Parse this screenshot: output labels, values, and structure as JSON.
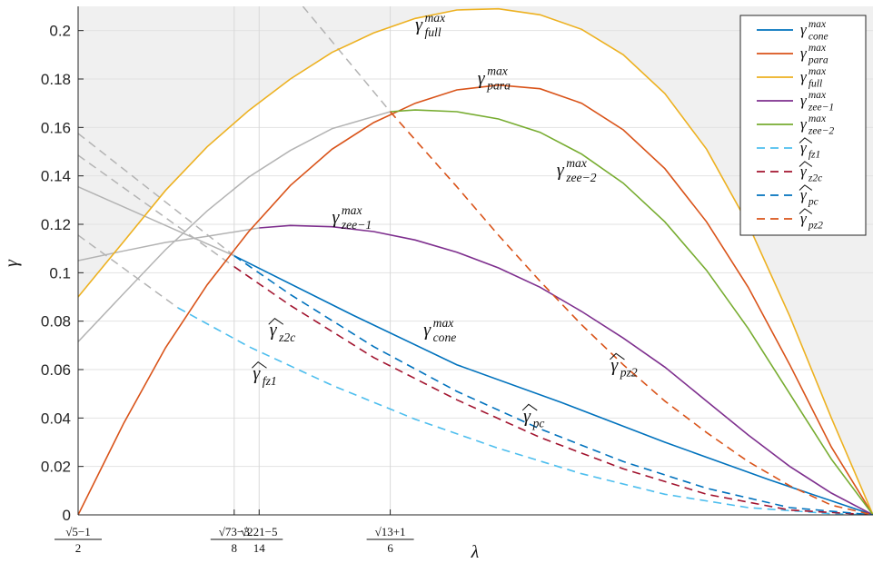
{
  "chart_data": {
    "type": "line",
    "xlabel": "λ",
    "ylabel": "γ",
    "xlim": [
      0.618,
      1.0
    ],
    "ylim": [
      0,
      0.21
    ],
    "grid": true,
    "legend_position": "top-right",
    "y_ticks": [
      0,
      0.02,
      0.04,
      0.06,
      0.08,
      0.1,
      0.12,
      0.14,
      0.16,
      0.18,
      0.2
    ],
    "y_tick_labels": [
      "0",
      "0.02",
      "0.04",
      "0.06",
      "0.08",
      "0.1",
      "0.12",
      "0.14",
      "0.16",
      "0.18",
      "0.2"
    ],
    "x_ticks": [
      {
        "x": 0.618,
        "num": "√5−1",
        "den": "2"
      },
      {
        "x": 0.693,
        "num": "√73−3",
        "den": "8"
      },
      {
        "x": 0.705,
        "num": "√221−5",
        "den": "14"
      },
      {
        "x": 0.768,
        "num": "√13+1",
        "den": "6"
      }
    ],
    "series": [
      {
        "name": "γ_cone^max",
        "color": "#0072BD",
        "dash": false,
        "points": [
          [
            0.693,
            0.107
          ],
          [
            0.75,
            0.0825
          ],
          [
            0.8,
            0.062
          ],
          [
            0.85,
            0.0465
          ],
          [
            0.9,
            0.03
          ],
          [
            0.95,
            0.0145
          ],
          [
            1.0,
            0.0
          ]
        ]
      },
      {
        "name": "γ_para^max",
        "color": "#D95319",
        "dash": false,
        "points": [
          [
            0.618,
            0.0
          ],
          [
            0.64,
            0.038
          ],
          [
            0.66,
            0.069
          ],
          [
            0.68,
            0.095
          ],
          [
            0.7,
            0.117
          ],
          [
            0.72,
            0.136
          ],
          [
            0.74,
            0.151
          ],
          [
            0.76,
            0.162
          ],
          [
            0.78,
            0.17
          ],
          [
            0.8,
            0.1755
          ],
          [
            0.82,
            0.1775
          ],
          [
            0.84,
            0.176
          ],
          [
            0.86,
            0.17
          ],
          [
            0.88,
            0.159
          ],
          [
            0.9,
            0.143
          ],
          [
            0.92,
            0.121
          ],
          [
            0.94,
            0.094
          ],
          [
            0.96,
            0.062
          ],
          [
            0.98,
            0.028
          ],
          [
            1.0,
            0.0
          ]
        ]
      },
      {
        "name": "γ_full^max",
        "color": "#EDB120",
        "dash": false,
        "points": [
          [
            0.618,
            0.09
          ],
          [
            0.64,
            0.113
          ],
          [
            0.66,
            0.134
          ],
          [
            0.68,
            0.152
          ],
          [
            0.7,
            0.167
          ],
          [
            0.72,
            0.18
          ],
          [
            0.74,
            0.191
          ],
          [
            0.76,
            0.199
          ],
          [
            0.78,
            0.205
          ],
          [
            0.8,
            0.2085
          ],
          [
            0.82,
            0.209
          ],
          [
            0.84,
            0.2065
          ],
          [
            0.86,
            0.2005
          ],
          [
            0.88,
            0.19
          ],
          [
            0.9,
            0.174
          ],
          [
            0.92,
            0.151
          ],
          [
            0.94,
            0.12
          ],
          [
            0.96,
            0.082
          ],
          [
            0.98,
            0.04
          ],
          [
            1.0,
            0.0
          ]
        ]
      },
      {
        "name": "γ_zee−1^max",
        "color": "#7E2F8E",
        "dash": false,
        "points": [
          [
            0.705,
            0.1185
          ],
          [
            0.72,
            0.1195
          ],
          [
            0.74,
            0.119
          ],
          [
            0.76,
            0.117
          ],
          [
            0.78,
            0.1135
          ],
          [
            0.8,
            0.1085
          ],
          [
            0.82,
            0.102
          ],
          [
            0.84,
            0.094
          ],
          [
            0.86,
            0.084
          ],
          [
            0.88,
            0.073
          ],
          [
            0.9,
            0.061
          ],
          [
            0.92,
            0.047
          ],
          [
            0.94,
            0.033
          ],
          [
            0.96,
            0.02
          ],
          [
            0.98,
            0.009
          ],
          [
            1.0,
            0.0
          ]
        ]
      },
      {
        "name": "γ_zee−2^max",
        "color": "#77AC30",
        "dash": false,
        "points": [
          [
            0.768,
            0.1665
          ],
          [
            0.78,
            0.1672
          ],
          [
            0.8,
            0.1665
          ],
          [
            0.82,
            0.1635
          ],
          [
            0.84,
            0.158
          ],
          [
            0.86,
            0.149
          ],
          [
            0.88,
            0.137
          ],
          [
            0.9,
            0.121
          ],
          [
            0.92,
            0.101
          ],
          [
            0.94,
            0.077
          ],
          [
            0.96,
            0.05
          ],
          [
            0.98,
            0.023
          ],
          [
            1.0,
            0.0
          ]
        ]
      },
      {
        "name": "γ̂_fz1",
        "color": "#4DBEEE",
        "dash": true,
        "points": [
          [
            0.666,
            0.0855
          ],
          [
            0.7,
            0.0695
          ],
          [
            0.74,
            0.0535
          ],
          [
            0.78,
            0.0395
          ],
          [
            0.82,
            0.0275
          ],
          [
            0.86,
            0.017
          ],
          [
            0.9,
            0.0085
          ],
          [
            0.94,
            0.003
          ],
          [
            0.98,
            0.0005
          ],
          [
            1.0,
            0.0
          ]
        ]
      },
      {
        "name": "γ̂_z2c",
        "color": "#A2142F",
        "dash": true,
        "points": [
          [
            0.693,
            0.1025
          ],
          [
            0.72,
            0.0865
          ],
          [
            0.76,
            0.065
          ],
          [
            0.8,
            0.0475
          ],
          [
            0.84,
            0.032
          ],
          [
            0.88,
            0.019
          ],
          [
            0.92,
            0.0085
          ],
          [
            0.96,
            0.002
          ],
          [
            1.0,
            0.0
          ]
        ]
      },
      {
        "name": "γ̂_pc",
        "color": "#0072BD",
        "dash": true,
        "points": [
          [
            0.693,
            0.107
          ],
          [
            0.72,
            0.091
          ],
          [
            0.76,
            0.0695
          ],
          [
            0.8,
            0.051
          ],
          [
            0.84,
            0.0355
          ],
          [
            0.88,
            0.022
          ],
          [
            0.92,
            0.011
          ],
          [
            0.96,
            0.003
          ],
          [
            1.0,
            0.0
          ]
        ]
      },
      {
        "name": "γ̂_pz2",
        "color": "#D95319",
        "dash": true,
        "points": [
          [
            0.768,
            0.1665
          ],
          [
            0.8,
            0.1355
          ],
          [
            0.82,
            0.1155
          ],
          [
            0.84,
            0.0965
          ],
          [
            0.86,
            0.0785
          ],
          [
            0.88,
            0.062
          ],
          [
            0.9,
            0.047
          ],
          [
            0.92,
            0.034
          ],
          [
            0.94,
            0.022
          ],
          [
            0.96,
            0.012
          ],
          [
            0.98,
            0.004
          ],
          [
            1.0,
            0.0
          ]
        ]
      }
    ],
    "grey_extensions": [
      {
        "color": "#b3b3b3",
        "dash": false,
        "points": [
          [
            0.618,
            0.0715
          ],
          [
            0.64,
            0.0915
          ],
          [
            0.66,
            0.1095
          ],
          [
            0.68,
            0.1255
          ],
          [
            0.7,
            0.1395
          ],
          [
            0.72,
            0.1505
          ],
          [
            0.74,
            0.1595
          ],
          [
            0.768,
            0.1665
          ]
        ]
      },
      {
        "color": "#b3b3b3",
        "dash": false,
        "points": [
          [
            0.618,
            0.105
          ],
          [
            0.64,
            0.109
          ],
          [
            0.66,
            0.1125
          ],
          [
            0.68,
            0.115
          ],
          [
            0.705,
            0.1185
          ]
        ]
      },
      {
        "color": "#b3b3b3",
        "dash": false,
        "points": [
          [
            0.618,
            0.1355
          ],
          [
            0.693,
            0.107
          ]
        ]
      },
      {
        "color": "#b3b3b3",
        "dash": true,
        "points": [
          [
            0.618,
            0.1155
          ],
          [
            0.666,
            0.0855
          ]
        ]
      },
      {
        "color": "#b3b3b3",
        "dash": true,
        "points": [
          [
            0.618,
            0.1485
          ],
          [
            0.693,
            0.1025
          ]
        ]
      },
      {
        "color": "#b3b3b3",
        "dash": true,
        "points": [
          [
            0.618,
            0.1575
          ],
          [
            0.693,
            0.107
          ]
        ]
      },
      {
        "color": "#b3b3b3",
        "dash": true,
        "points": [
          [
            0.726,
            0.21
          ],
          [
            0.768,
            0.1665
          ]
        ]
      }
    ],
    "annotations": [
      {
        "base": "γ",
        "sub": "full",
        "sup": "max",
        "hat": false,
        "x": 0.78,
        "y": 0.2
      },
      {
        "base": "γ",
        "sub": "para",
        "sup": "max",
        "hat": false,
        "x": 0.81,
        "y": 0.178
      },
      {
        "base": "γ",
        "sub": "zee−2",
        "sup": "max",
        "hat": false,
        "x": 0.848,
        "y": 0.14
      },
      {
        "base": "γ",
        "sub": "zee−1",
        "sup": "max",
        "hat": false,
        "x": 0.74,
        "y": 0.1205
      },
      {
        "base": "γ",
        "sub": "cone",
        "sup": "max",
        "hat": false,
        "x": 0.784,
        "y": 0.074
      },
      {
        "base": "γ",
        "sub": "z2c",
        "sup": "",
        "hat": true,
        "x": 0.71,
        "y": 0.074
      },
      {
        "base": "γ",
        "sub": "fz1",
        "sup": "",
        "hat": true,
        "x": 0.702,
        "y": 0.056
      },
      {
        "base": "γ",
        "sub": "pz2",
        "sup": "",
        "hat": true,
        "x": 0.874,
        "y": 0.0595
      },
      {
        "base": "γ",
        "sub": "pc",
        "sup": "",
        "hat": true,
        "x": 0.832,
        "y": 0.0385
      }
    ],
    "legend": [
      {
        "base": "γ",
        "sub": "cone",
        "sup": "max",
        "hat": false,
        "color": "#0072BD",
        "dash": false
      },
      {
        "base": "γ",
        "sub": "para",
        "sup": "max",
        "hat": false,
        "color": "#D95319",
        "dash": false
      },
      {
        "base": "γ",
        "sub": "full",
        "sup": "max",
        "hat": false,
        "color": "#EDB120",
        "dash": false
      },
      {
        "base": "γ",
        "sub": "zee−1",
        "sup": "max",
        "hat": false,
        "color": "#7E2F8E",
        "dash": false
      },
      {
        "base": "γ",
        "sub": "zee−2",
        "sup": "max",
        "hat": false,
        "color": "#77AC30",
        "dash": false
      },
      {
        "base": "γ",
        "sub": "fz1",
        "sup": "",
        "hat": true,
        "color": "#4DBEEE",
        "dash": true
      },
      {
        "base": "γ",
        "sub": "z2c",
        "sup": "",
        "hat": true,
        "color": "#A2142F",
        "dash": true
      },
      {
        "base": "γ",
        "sub": "pc",
        "sup": "",
        "hat": true,
        "color": "#0072BD",
        "dash": true
      },
      {
        "base": "γ",
        "sub": "pz2",
        "sup": "",
        "hat": true,
        "color": "#D95319",
        "dash": true
      }
    ]
  }
}
